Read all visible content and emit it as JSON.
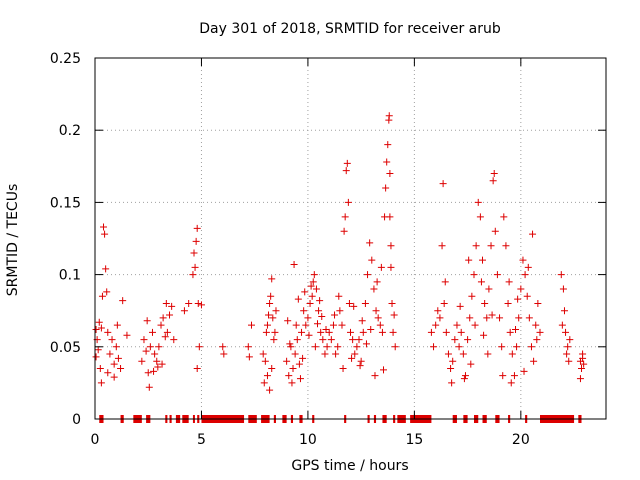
{
  "chart_data": {
    "type": "scatter",
    "title": "Day 301 of 2018, SRMTID for receiver arub",
    "xlabel": "GPS time / hours",
    "ylabel": "SRMTID / TECUs",
    "xlim": [
      0,
      24
    ],
    "ylim": [
      0,
      0.25
    ],
    "xticks": [
      0,
      5,
      10,
      15,
      20
    ],
    "xtick_labels": [
      "0",
      "5",
      "10",
      "15",
      "20"
    ],
    "yticks": [
      0,
      0.05,
      0.1,
      0.15,
      0.2,
      0.25
    ],
    "ytick_labels": [
      "0",
      "0.05",
      "0.1",
      "0.15",
      "0.2",
      "0.25"
    ],
    "grid": true,
    "marker": "+",
    "series": [
      {
        "name": "SRMTID",
        "color": "#dd0000",
        "points": [
          [
            0.05,
            0.062
          ],
          [
            0.1,
            0.055
          ],
          [
            0.15,
            0.048
          ],
          [
            0.2,
            0.067
          ],
          [
            0.25,
            0.035
          ],
          [
            0.3,
            0.063
          ],
          [
            0.35,
            0.085
          ],
          [
            0.4,
            0.133
          ],
          [
            0.45,
            0.128
          ],
          [
            0.5,
            0.104
          ],
          [
            0.55,
            0.088
          ],
          [
            0.6,
            0.06
          ],
          [
            0.7,
            0.045
          ],
          [
            0.8,
            0.055
          ],
          [
            0.9,
            0.038
          ],
          [
            1.0,
            0.05
          ],
          [
            1.1,
            0.042
          ],
          [
            1.2,
            0.035
          ],
          [
            1.3,
            0.082
          ],
          [
            1.5,
            0.058
          ],
          [
            0.05,
            0.043
          ],
          [
            0.3,
            0.025
          ],
          [
            0.6,
            0.032
          ],
          [
            0.9,
            0.029
          ],
          [
            1.05,
            0.065
          ],
          [
            2.2,
            0.04
          ],
          [
            2.3,
            0.055
          ],
          [
            2.4,
            0.047
          ],
          [
            2.5,
            0.032
          ],
          [
            2.6,
            0.05
          ],
          [
            2.7,
            0.06
          ],
          [
            2.8,
            0.045
          ],
          [
            2.9,
            0.04
          ],
          [
            3.0,
            0.05
          ],
          [
            3.1,
            0.065
          ],
          [
            3.2,
            0.07
          ],
          [
            3.3,
            0.057
          ],
          [
            3.4,
            0.06
          ],
          [
            3.5,
            0.072
          ],
          [
            3.6,
            0.078
          ],
          [
            3.7,
            0.055
          ],
          [
            2.45,
            0.068
          ],
          [
            2.75,
            0.033
          ],
          [
            3.15,
            0.038
          ],
          [
            3.35,
            0.08
          ],
          [
            2.55,
            0.022
          ],
          [
            2.95,
            0.036
          ],
          [
            4.2,
            0.075
          ],
          [
            4.4,
            0.08
          ],
          [
            4.6,
            0.1
          ],
          [
            4.7,
            0.105
          ],
          [
            4.75,
            0.123
          ],
          [
            4.8,
            0.132
          ],
          [
            4.85,
            0.08
          ],
          [
            4.9,
            0.05
          ],
          [
            5.0,
            0.079
          ],
          [
            4.65,
            0.115
          ],
          [
            4.8,
            0.035
          ],
          [
            6.0,
            0.05
          ],
          [
            6.05,
            0.045
          ],
          [
            7.2,
            0.05
          ],
          [
            7.25,
            0.043
          ],
          [
            7.35,
            0.065
          ],
          [
            7.9,
            0.045
          ],
          [
            8.0,
            0.04
          ],
          [
            8.05,
            0.06
          ],
          [
            8.1,
            0.065
          ],
          [
            8.15,
            0.072
          ],
          [
            8.2,
            0.08
          ],
          [
            8.25,
            0.085
          ],
          [
            8.3,
            0.097
          ],
          [
            8.35,
            0.07
          ],
          [
            8.4,
            0.055
          ],
          [
            8.45,
            0.06
          ],
          [
            8.5,
            0.075
          ],
          [
            8.2,
            0.02
          ],
          [
            8.1,
            0.03
          ],
          [
            7.95,
            0.025
          ],
          [
            8.3,
            0.035
          ],
          [
            9.0,
            0.04
          ],
          [
            9.1,
            0.03
          ],
          [
            9.2,
            0.05
          ],
          [
            9.3,
            0.035
          ],
          [
            9.4,
            0.045
          ],
          [
            9.5,
            0.055
          ],
          [
            9.6,
            0.038
          ],
          [
            9.7,
            0.06
          ],
          [
            9.8,
            0.075
          ],
          [
            9.9,
            0.065
          ],
          [
            10.0,
            0.07
          ],
          [
            10.1,
            0.08
          ],
          [
            10.2,
            0.085
          ],
          [
            10.3,
            0.1
          ],
          [
            10.4,
            0.09
          ],
          [
            10.5,
            0.075
          ],
          [
            10.6,
            0.06
          ],
          [
            10.7,
            0.055
          ],
          [
            10.8,
            0.045
          ],
          [
            10.9,
            0.05
          ],
          [
            9.35,
            0.107
          ],
          [
            9.45,
            0.065
          ],
          [
            9.65,
            0.028
          ],
          [
            9.25,
            0.025
          ],
          [
            9.55,
            0.083
          ],
          [
            9.75,
            0.042
          ],
          [
            10.05,
            0.058
          ],
          [
            10.25,
            0.095
          ],
          [
            10.45,
            0.066
          ],
          [
            10.65,
            0.071
          ],
          [
            10.85,
            0.062
          ],
          [
            9.85,
            0.088
          ],
          [
            10.15,
            0.092
          ],
          [
            10.35,
            0.05
          ],
          [
            10.55,
            0.082
          ],
          [
            9.05,
            0.068
          ],
          [
            9.15,
            0.052
          ],
          [
            11.0,
            0.06
          ],
          [
            11.1,
            0.055
          ],
          [
            11.2,
            0.065
          ],
          [
            11.3,
            0.045
          ],
          [
            11.4,
            0.05
          ],
          [
            11.5,
            0.075
          ],
          [
            11.6,
            0.065
          ],
          [
            11.7,
            0.13
          ],
          [
            11.75,
            0.14
          ],
          [
            11.8,
            0.172
          ],
          [
            11.85,
            0.177
          ],
          [
            11.9,
            0.15
          ],
          [
            11.95,
            0.08
          ],
          [
            12.0,
            0.06
          ],
          [
            12.1,
            0.055
          ],
          [
            12.2,
            0.045
          ],
          [
            12.3,
            0.05
          ],
          [
            12.4,
            0.055
          ],
          [
            12.5,
            0.04
          ],
          [
            12.6,
            0.06
          ],
          [
            12.7,
            0.08
          ],
          [
            12.8,
            0.1
          ],
          [
            12.9,
            0.122
          ],
          [
            13.0,
            0.11
          ],
          [
            13.1,
            0.09
          ],
          [
            13.2,
            0.075
          ],
          [
            13.3,
            0.07
          ],
          [
            13.4,
            0.065
          ],
          [
            13.5,
            0.06
          ],
          [
            13.6,
            0.14
          ],
          [
            13.65,
            0.16
          ],
          [
            13.7,
            0.178
          ],
          [
            13.75,
            0.19
          ],
          [
            13.8,
            0.207
          ],
          [
            13.82,
            0.21
          ],
          [
            13.85,
            0.17
          ],
          [
            13.9,
            0.12
          ],
          [
            13.95,
            0.08
          ],
          [
            14.0,
            0.06
          ],
          [
            14.1,
            0.05
          ],
          [
            11.65,
            0.035
          ],
          [
            12.05,
            0.042
          ],
          [
            12.45,
            0.037
          ],
          [
            13.15,
            0.03
          ],
          [
            13.55,
            0.034
          ],
          [
            11.25,
            0.072
          ],
          [
            12.15,
            0.078
          ],
          [
            12.55,
            0.068
          ],
          [
            12.95,
            0.062
          ],
          [
            13.25,
            0.095
          ],
          [
            13.45,
            0.105
          ],
          [
            13.85,
            0.14
          ],
          [
            13.9,
            0.105
          ],
          [
            14.05,
            0.072
          ],
          [
            11.45,
            0.085
          ],
          [
            12.75,
            0.052
          ],
          [
            15.8,
            0.06
          ],
          [
            15.9,
            0.05
          ],
          [
            16.0,
            0.065
          ],
          [
            16.1,
            0.075
          ],
          [
            16.2,
            0.07
          ],
          [
            16.3,
            0.12
          ],
          [
            16.35,
            0.163
          ],
          [
            16.4,
            0.08
          ],
          [
            16.5,
            0.06
          ],
          [
            16.6,
            0.045
          ],
          [
            16.7,
            0.035
          ],
          [
            16.8,
            0.04
          ],
          [
            16.9,
            0.055
          ],
          [
            17.0,
            0.065
          ],
          [
            17.1,
            0.05
          ],
          [
            17.2,
            0.06
          ],
          [
            17.3,
            0.045
          ],
          [
            17.4,
            0.03
          ],
          [
            17.5,
            0.055
          ],
          [
            17.6,
            0.07
          ],
          [
            17.7,
            0.085
          ],
          [
            17.8,
            0.1
          ],
          [
            17.9,
            0.12
          ],
          [
            18.0,
            0.15
          ],
          [
            18.1,
            0.14
          ],
          [
            18.2,
            0.11
          ],
          [
            18.3,
            0.08
          ],
          [
            18.4,
            0.07
          ],
          [
            18.5,
            0.09
          ],
          [
            18.6,
            0.12
          ],
          [
            18.7,
            0.165
          ],
          [
            18.75,
            0.17
          ],
          [
            18.8,
            0.13
          ],
          [
            18.9,
            0.1
          ],
          [
            19.0,
            0.07
          ],
          [
            19.1,
            0.05
          ],
          [
            19.2,
            0.14
          ],
          [
            19.3,
            0.12
          ],
          [
            19.4,
            0.08
          ],
          [
            19.5,
            0.06
          ],
          [
            19.6,
            0.045
          ],
          [
            19.7,
            0.03
          ],
          [
            19.8,
            0.05
          ],
          [
            19.9,
            0.07
          ],
          [
            20.0,
            0.09
          ],
          [
            20.1,
            0.11
          ],
          [
            20.2,
            0.1
          ],
          [
            20.3,
            0.085
          ],
          [
            20.4,
            0.07
          ],
          [
            20.5,
            0.05
          ],
          [
            20.6,
            0.04
          ],
          [
            20.7,
            0.065
          ],
          [
            20.8,
            0.08
          ],
          [
            20.9,
            0.06
          ],
          [
            16.75,
            0.025
          ],
          [
            17.35,
            0.028
          ],
          [
            17.65,
            0.038
          ],
          [
            18.45,
            0.045
          ],
          [
            19.15,
            0.03
          ],
          [
            19.55,
            0.025
          ],
          [
            20.15,
            0.033
          ],
          [
            20.55,
            0.128
          ],
          [
            20.75,
            0.055
          ],
          [
            17.15,
            0.078
          ],
          [
            17.85,
            0.065
          ],
          [
            18.25,
            0.058
          ],
          [
            18.65,
            0.072
          ],
          [
            19.45,
            0.095
          ],
          [
            19.85,
            0.083
          ],
          [
            20.35,
            0.105
          ],
          [
            16.45,
            0.095
          ],
          [
            17.55,
            0.11
          ],
          [
            18.15,
            0.095
          ],
          [
            19.75,
            0.062
          ],
          [
            21.9,
            0.1
          ],
          [
            22.0,
            0.09
          ],
          [
            22.05,
            0.075
          ],
          [
            22.1,
            0.06
          ],
          [
            22.15,
            0.045
          ],
          [
            22.2,
            0.05
          ],
          [
            22.25,
            0.04
          ],
          [
            21.95,
            0.065
          ],
          [
            22.3,
            0.055
          ],
          [
            22.8,
            0.04
          ],
          [
            22.85,
            0.035
          ],
          [
            22.9,
            0.042
          ],
          [
            22.95,
            0.038
          ],
          [
            22.8,
            0.028
          ],
          [
            22.9,
            0.045
          ]
        ]
      }
    ],
    "zero_segments": [
      [
        0.2,
        0.4
      ],
      [
        1.2,
        1.35
      ],
      [
        1.8,
        2.2
      ],
      [
        2.4,
        2.6
      ],
      [
        3.3,
        3.4
      ],
      [
        3.5,
        3.6
      ],
      [
        3.8,
        4.0
      ],
      [
        4.1,
        4.4
      ],
      [
        4.6,
        4.65
      ],
      [
        4.8,
        4.9
      ],
      [
        5.0,
        7.0
      ],
      [
        7.2,
        7.6
      ],
      [
        7.8,
        8.2
      ],
      [
        8.4,
        8.5
      ],
      [
        8.8,
        9.0
      ],
      [
        9.2,
        9.3
      ],
      [
        9.6,
        9.75
      ],
      [
        10.2,
        10.3
      ],
      [
        11.7,
        11.8
      ],
      [
        12.8,
        12.9
      ],
      [
        13.1,
        13.2
      ],
      [
        13.5,
        13.7
      ],
      [
        14.0,
        14.1
      ],
      [
        14.2,
        14.6
      ],
      [
        14.8,
        15.8
      ],
      [
        16.8,
        17.0
      ],
      [
        17.3,
        17.5
      ],
      [
        17.8,
        18.0
      ],
      [
        18.2,
        18.4
      ],
      [
        18.8,
        19.0
      ],
      [
        19.4,
        19.5
      ],
      [
        20.2,
        20.3
      ],
      [
        20.9,
        22.5
      ],
      [
        22.7,
        22.85
      ]
    ]
  }
}
